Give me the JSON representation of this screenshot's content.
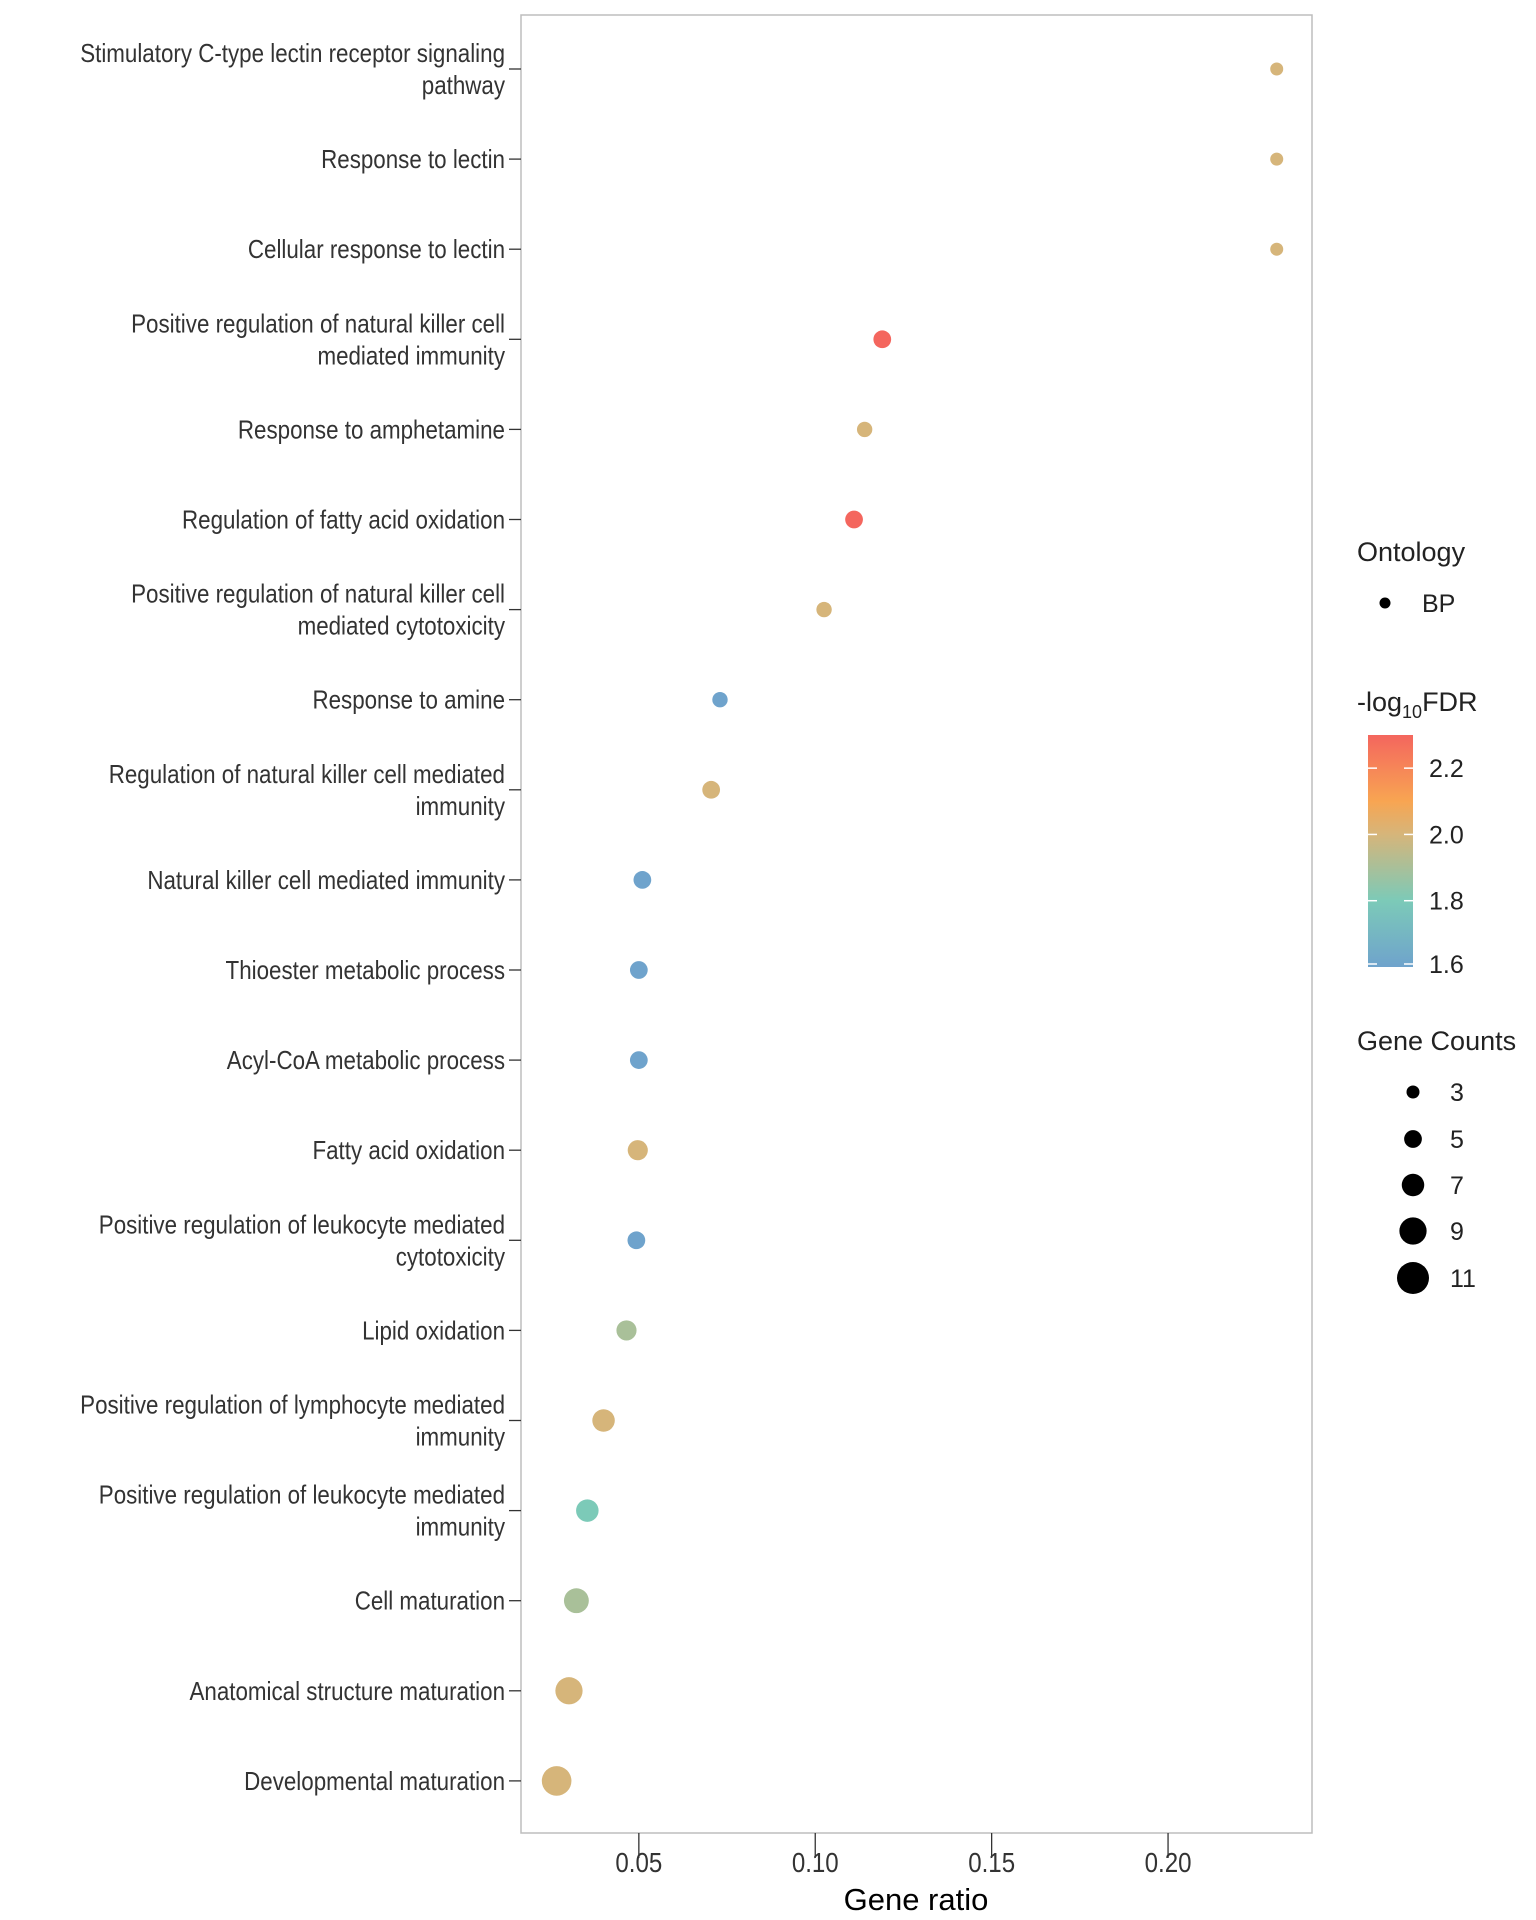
{
  "chart_data": {
    "type": "scatter",
    "xlabel": "Gene ratio",
    "ylabel": "",
    "xlim": [
      0.0166,
      0.2408
    ],
    "xticks": [
      0.05,
      0.1,
      0.15,
      0.2
    ],
    "xtick_labels": [
      "0.05",
      "0.10",
      "0.15",
      "0.20"
    ],
    "grid": false,
    "categories": [
      "Stimulatory C-type lectin receptor signaling\npathway",
      "Response to lectin",
      "Cellular response to lectin",
      "Positive regulation of natural killer cell\nmediated immunity",
      "Response to amphetamine",
      "Regulation of fatty acid oxidation",
      "Positive regulation of natural killer cell\nmediated cytotoxicity",
      "Response to amine",
      "Regulation of natural killer cell mediated\nimmunity",
      "Natural killer cell mediated immunity",
      "Thioester metabolic process",
      "Acyl-CoA metabolic process",
      "Fatty acid oxidation",
      "Positive regulation of leukocyte mediated\ncytotoxicity",
      "Lipid oxidation",
      "Positive regulation of lymphocyte mediated\nimmunity",
      "Positive regulation of leukocyte mediated\nimmunity",
      "Cell maturation",
      "Anatomical structure maturation",
      "Developmental maturation"
    ],
    "gene_ratio": [
      0.2308,
      0.2308,
      0.2308,
      0.119,
      0.114,
      0.111,
      0.1025,
      0.073,
      0.0705,
      0.051,
      0.05,
      0.05,
      0.0497,
      0.0493,
      0.0465,
      0.04,
      0.0354,
      0.0323,
      0.0302,
      0.0267
    ],
    "neg_log10_fdr": [
      2.0,
      2.0,
      2.0,
      2.3,
      2.0,
      2.3,
      2.0,
      1.6,
      2.0,
      1.6,
      1.6,
      1.6,
      2.0,
      1.6,
      1.9,
      2.0,
      1.8,
      1.9,
      2.0,
      2.0
    ],
    "gene_counts": [
      3,
      3,
      3,
      5,
      4,
      5,
      4,
      4,
      5,
      5,
      5,
      5,
      6,
      5,
      6,
      7,
      7,
      8,
      9,
      10
    ],
    "legends": {
      "shape": {
        "title": "Ontology",
        "entries": [
          "BP"
        ]
      },
      "color": {
        "title_prefix": "-log",
        "title_sub": "10",
        "title_suffix": "FDR",
        "range": [
          1.6,
          2.3
        ],
        "ticks": [
          2.2,
          2.0,
          1.8,
          1.6
        ],
        "tick_labels": [
          "2.2",
          "2.0",
          "1.8",
          "1.6"
        ],
        "gradient": [
          {
            "value": 1.6,
            "color": "#6fa3cc"
          },
          {
            "value": 1.8,
            "color": "#7ccab8"
          },
          {
            "value": 2.0,
            "color": "#d6b57a"
          },
          {
            "value": 2.1,
            "color": "#f8a552"
          },
          {
            "value": 2.3,
            "color": "#f4665e"
          }
        ]
      },
      "size": {
        "title": "Gene Counts",
        "entries": [
          3,
          5,
          7,
          9,
          11
        ],
        "entry_labels": [
          "3",
          "5",
          "7",
          "9",
          "11"
        ]
      },
      "placement": "right"
    }
  }
}
